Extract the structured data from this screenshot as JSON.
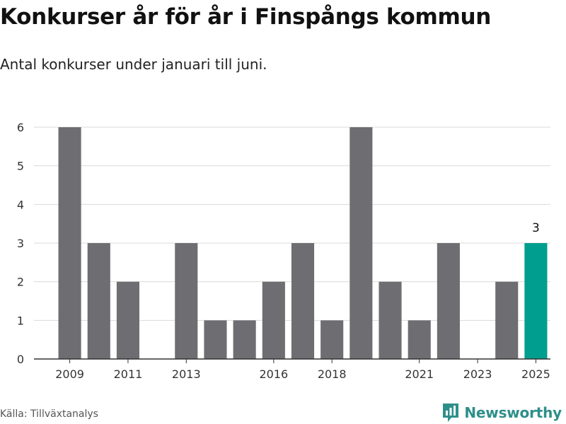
{
  "title": "Konkurser år för år i Finspångs kommun",
  "subtitle": "Antal konkurser under januari till juni.",
  "source": "Källa: Tillväxtanalys",
  "brand": "Newsworthy",
  "colors": {
    "bar": "#6e6d72",
    "highlight": "#009e8e",
    "grid": "#d9d9d9",
    "axis": "#333333",
    "brand": "#2e8f8a"
  },
  "chart_data": {
    "type": "bar",
    "categories": [
      "2009",
      "2010",
      "2011",
      "2012",
      "2013",
      "2014",
      "2015",
      "2016",
      "2017",
      "2018",
      "2019",
      "2020",
      "2021",
      "2022",
      "2023",
      "2024",
      "2025"
    ],
    "values": [
      6,
      3,
      2,
      0,
      3,
      1,
      1,
      2,
      3,
      1,
      6,
      2,
      1,
      3,
      0,
      2,
      3
    ],
    "x_tick_labels": [
      "2009",
      "2011",
      "2013",
      "2016",
      "2018",
      "2021",
      "2023",
      "2025"
    ],
    "y_ticks": [
      0,
      1,
      2,
      3,
      4,
      5,
      6
    ],
    "ylim": [
      0,
      6
    ],
    "highlight_category": "2025",
    "data_labels": [
      {
        "category": "2025",
        "value": 3
      }
    ],
    "grid": true,
    "legend": false
  }
}
